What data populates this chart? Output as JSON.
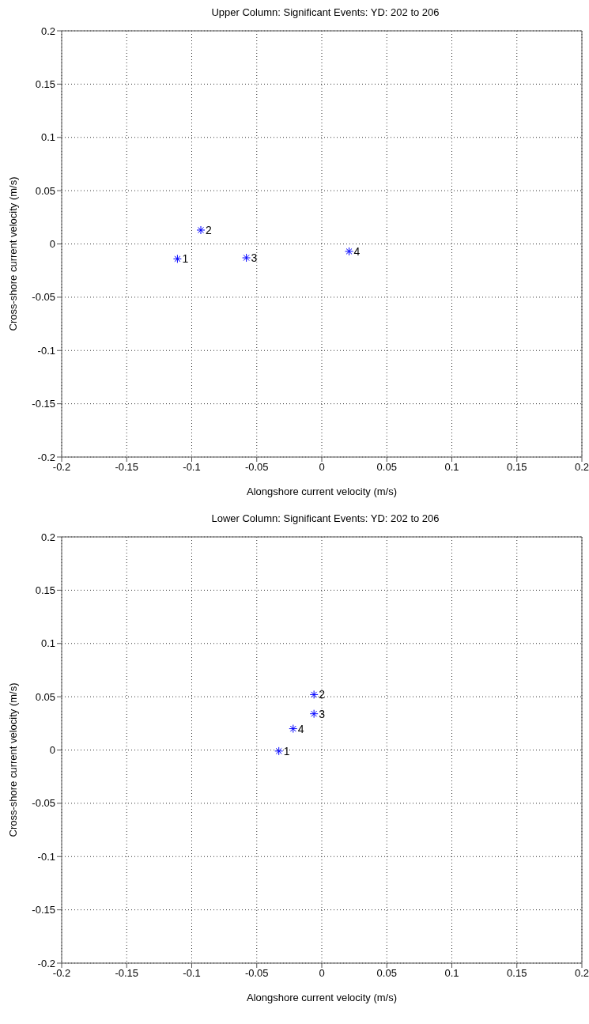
{
  "chart_data": [
    {
      "type": "scatter",
      "title": "Upper Column: Significant Events: YD: 202 to 206",
      "xlabel": "Alongshore current velocity (m/s)",
      "ylabel": "Cross-shore current velocity (m/s)",
      "x": [
        -0.111,
        -0.093,
        -0.058,
        0.021
      ],
      "values": [
        -0.014,
        0.013,
        -0.013,
        -0.007
      ],
      "color": "#0000ff",
      "marker": "cross",
      "xlim": [
        -0.2,
        0.2
      ],
      "ylim": [
        -0.2,
        0.2
      ],
      "xticks": [
        -0.2,
        -0.15,
        -0.1,
        -0.05,
        0,
        0.05,
        0.1,
        0.15,
        0.2
      ],
      "yticks": [
        -0.2,
        -0.15,
        -0.1,
        -0.05,
        0,
        0.05,
        0.1,
        0.15,
        0.2
      ],
      "grid": true,
      "legend": false,
      "annotations": [
        {
          "text": "1",
          "x": -0.111,
          "y": -0.014
        },
        {
          "text": "2",
          "x": -0.093,
          "y": 0.013
        },
        {
          "text": "3",
          "x": -0.058,
          "y": -0.013
        },
        {
          "text": "4",
          "x": 0.021,
          "y": -0.007
        }
      ]
    },
    {
      "type": "scatter",
      "title": "Lower Column: Significant Events: YD: 202 to 206",
      "xlabel": "Alongshore current velocity (m/s)",
      "ylabel": "Cross-shore current velocity (m/s)",
      "x": [
        -0.033,
        -0.006,
        -0.006,
        -0.022
      ],
      "values": [
        -0.001,
        0.052,
        0.034,
        0.02
      ],
      "color": "#0000ff",
      "marker": "cross",
      "xlim": [
        -0.2,
        0.2
      ],
      "ylim": [
        -0.2,
        0.2
      ],
      "xticks": [
        -0.2,
        -0.15,
        -0.1,
        -0.05,
        0,
        0.05,
        0.1,
        0.15,
        0.2
      ],
      "yticks": [
        -0.2,
        -0.15,
        -0.1,
        -0.05,
        0,
        0.05,
        0.1,
        0.15,
        0.2
      ],
      "grid": true,
      "legend": false,
      "annotations": [
        {
          "text": "1",
          "x": -0.033,
          "y": -0.001
        },
        {
          "text": "2",
          "x": -0.006,
          "y": 0.052
        },
        {
          "text": "3",
          "x": -0.006,
          "y": 0.034
        },
        {
          "text": "4",
          "x": -0.022,
          "y": 0.02
        }
      ]
    }
  ]
}
